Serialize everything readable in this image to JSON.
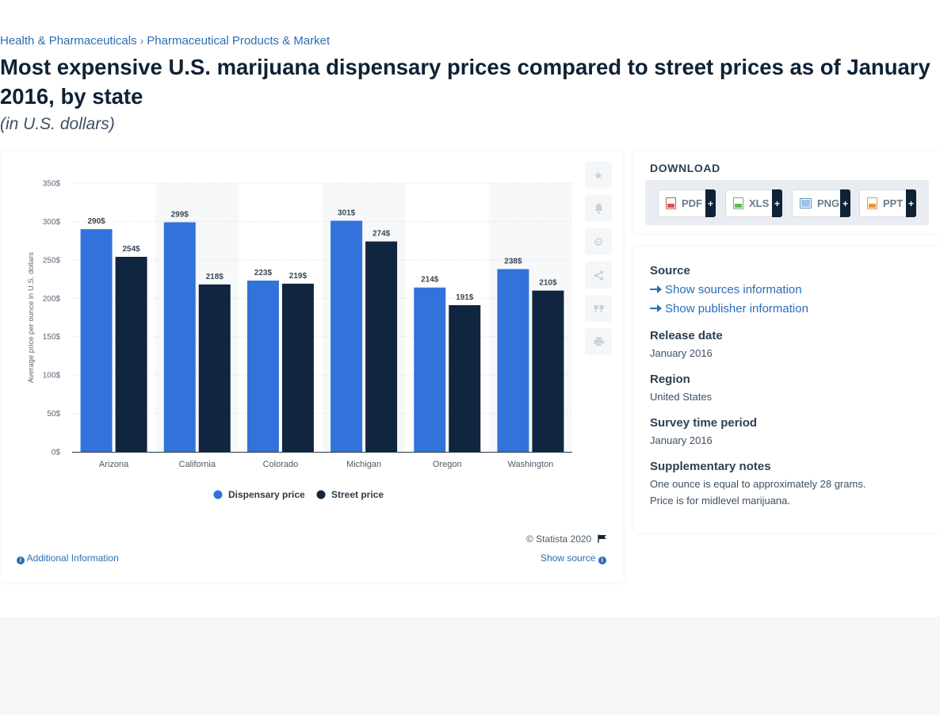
{
  "breadcrumb": {
    "items": [
      "Health & Pharmaceuticals",
      "Pharmaceutical Products & Market"
    ],
    "separator": "›"
  },
  "page": {
    "title": "Most expensive U.S. marijuana dispensary prices compared to street prices as of January 2016, by state",
    "subtitle": "(in U.S. dollars)"
  },
  "chart_data": {
    "type": "bar",
    "categories": [
      "Arizona",
      "California",
      "Colorado",
      "Michigan",
      "Oregon",
      "Washington"
    ],
    "series": [
      {
        "name": "Dispensary price",
        "values": [
          290,
          299,
          223,
          301,
          214,
          238
        ],
        "labels": [
          "290$",
          "299$",
          "223$",
          "301$",
          "214$",
          "238$"
        ],
        "color": "#3173db"
      },
      {
        "name": "Street price",
        "values": [
          254,
          218,
          219,
          274,
          191,
          210
        ],
        "labels": [
          "254$",
          "218$",
          "219$",
          "274$",
          "191$",
          "210$"
        ],
        "color": "#10253f"
      }
    ],
    "ylabel": "Average price per ounce in U.S. dollars",
    "ylim": [
      0,
      350
    ],
    "yticks": [
      0,
      50,
      100,
      150,
      200,
      250,
      300,
      350
    ],
    "ytick_labels": [
      "0$",
      "50$",
      "100$",
      "150$",
      "200$",
      "250$",
      "300$",
      "350$"
    ],
    "grid": true,
    "legend": "bottom-center"
  },
  "chart_footer": {
    "copyright": "© Statista 2020",
    "additional_info": "Additional Information",
    "show_source": "Show source"
  },
  "tools": [
    "star-icon",
    "bell-icon",
    "gear-icon",
    "share-icon",
    "quote-icon",
    "print-icon"
  ],
  "download": {
    "title": "DOWNLOAD",
    "buttons": [
      {
        "label": "PDF",
        "color": "#d9534f"
      },
      {
        "label": "XLS",
        "color": "#5cb85c"
      },
      {
        "label": "PNG",
        "color": "#5b8fc9"
      },
      {
        "label": "PPT",
        "color": "#e8923a"
      }
    ],
    "plus": "+"
  },
  "meta": {
    "source_heading": "Source",
    "show_sources": "Show sources information",
    "show_publisher": "Show publisher information",
    "release_heading": "Release date",
    "release_value": "January 2016",
    "region_heading": "Region",
    "region_value": "United States",
    "survey_heading": "Survey time period",
    "survey_value": "January 2016",
    "notes_heading": "Supplementary notes",
    "notes_line1": "One ounce is equal to approximately 28 grams.",
    "notes_line2": "Price is for midlevel marijuana."
  }
}
